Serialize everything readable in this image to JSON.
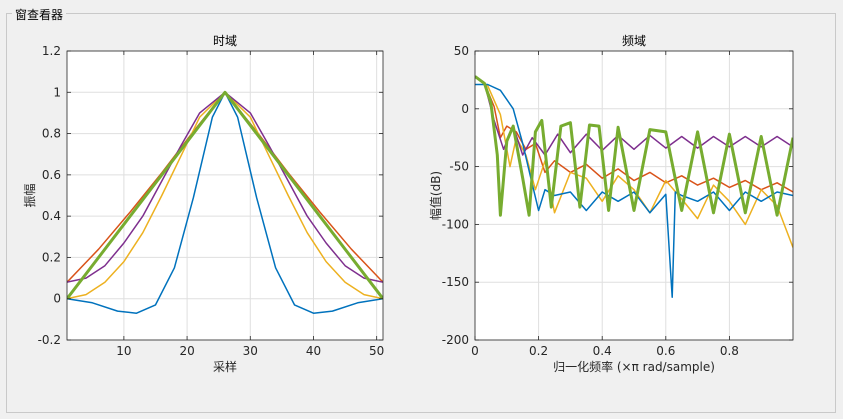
{
  "window": {
    "panel_title": "窗查看器"
  },
  "colors": {
    "axes_bg": "#ffffff",
    "grid": "#dfdfdf",
    "axis_line": "#262626",
    "series": [
      "#0072BD",
      "#D95319",
      "#EDB120",
      "#7E2F8E",
      "#77AC30"
    ]
  },
  "chart_data": [
    {
      "type": "line",
      "title": "时域",
      "xlabel": "采样",
      "ylabel": "振幅",
      "xlim": [
        1,
        51
      ],
      "ylim": [
        -0.2,
        1.2
      ],
      "xticks": [
        10,
        20,
        30,
        40,
        50
      ],
      "yticks": [
        -0.2,
        0,
        0.2,
        0.4,
        0.6,
        0.8,
        1,
        1.2
      ],
      "grid": true,
      "series": [
        {
          "x": [
            1,
            5,
            9,
            12,
            15,
            18,
            21,
            24,
            26,
            28,
            31,
            34,
            37,
            40,
            43,
            47,
            51
          ],
          "y": [
            0,
            -0.02,
            -0.06,
            -0.07,
            -0.03,
            0.15,
            0.49,
            0.88,
            1,
            0.88,
            0.49,
            0.15,
            -0.03,
            -0.07,
            -0.06,
            -0.02,
            0
          ]
        },
        {
          "x": [
            1,
            6,
            11,
            16,
            21,
            26,
            31,
            36,
            41,
            46,
            51
          ],
          "y": [
            0.08,
            0.24,
            0.42,
            0.61,
            0.81,
            1,
            0.81,
            0.61,
            0.42,
            0.24,
            0.08
          ]
        },
        {
          "x": [
            1,
            4,
            7,
            10,
            13,
            16,
            19,
            22,
            26,
            30,
            33,
            36,
            39,
            42,
            45,
            48,
            51
          ],
          "y": [
            0,
            0.02,
            0.08,
            0.18,
            0.32,
            0.5,
            0.69,
            0.88,
            1,
            0.88,
            0.69,
            0.5,
            0.32,
            0.18,
            0.08,
            0.02,
            0
          ]
        },
        {
          "x": [
            1,
            4,
            7,
            10,
            13,
            16,
            19,
            22,
            26,
            30,
            33,
            36,
            39,
            42,
            45,
            48,
            51
          ],
          "y": [
            0.08,
            0.1,
            0.16,
            0.27,
            0.4,
            0.57,
            0.74,
            0.9,
            1,
            0.9,
            0.74,
            0.57,
            0.4,
            0.27,
            0.16,
            0.1,
            0.08
          ]
        },
        {
          "x": [
            1,
            26,
            51
          ],
          "y": [
            0,
            1,
            0
          ]
        }
      ]
    },
    {
      "type": "line",
      "title": "频域",
      "xlabel": "归一化频率  (×π rad/sample)",
      "ylabel": "幅值(dB)",
      "xlim": [
        0,
        1
      ],
      "ylim": [
        -200,
        50
      ],
      "xticks": [
        0,
        0.2,
        0.4,
        0.6,
        0.8
      ],
      "yticks": [
        -200,
        -150,
        -100,
        -50,
        0,
        50
      ],
      "grid": true,
      "series": [
        {
          "x": [
            0,
            0.04,
            0.08,
            0.12,
            0.15,
            0.18,
            0.2,
            0.22,
            0.25,
            0.3,
            0.35,
            0.4,
            0.45,
            0.5,
            0.55,
            0.6,
            0.62,
            0.63,
            0.65,
            0.7,
            0.75,
            0.8,
            0.85,
            0.9,
            0.95,
            1
          ],
          "y": [
            21,
            21,
            16,
            0,
            -30,
            -65,
            -88,
            -70,
            -75,
            -72,
            -88,
            -72,
            -80,
            -72,
            -90,
            -74,
            -163,
            -72,
            -75,
            -80,
            -72,
            -88,
            -72,
            -80,
            -72,
            -75
          ]
        },
        {
          "x": [
            0,
            0.03,
            0.06,
            0.08,
            0.1,
            0.13,
            0.16,
            0.19,
            0.22,
            0.25,
            0.3,
            0.35,
            0.4,
            0.45,
            0.5,
            0.55,
            0.6,
            0.65,
            0.7,
            0.75,
            0.8,
            0.85,
            0.9,
            0.95,
            1
          ],
          "y": [
            28,
            22,
            2,
            -25,
            -15,
            -20,
            -35,
            -30,
            -55,
            -45,
            -55,
            -48,
            -60,
            -52,
            -62,
            -55,
            -64,
            -58,
            -66,
            -60,
            -68,
            -62,
            -70,
            -64,
            -72
          ]
        },
        {
          "x": [
            0,
            0.04,
            0.08,
            0.11,
            0.13,
            0.16,
            0.19,
            0.22,
            0.25,
            0.3,
            0.35,
            0.4,
            0.45,
            0.5,
            0.55,
            0.6,
            0.65,
            0.7,
            0.75,
            0.8,
            0.85,
            0.9,
            0.95,
            1
          ],
          "y": [
            28,
            20,
            -5,
            -50,
            -25,
            -40,
            -70,
            -45,
            -90,
            -55,
            -60,
            -80,
            -58,
            -70,
            -90,
            -62,
            -78,
            -95,
            -66,
            -80,
            -100,
            -70,
            -84,
            -120
          ]
        },
        {
          "x": [
            0,
            0.03,
            0.06,
            0.09,
            0.12,
            0.15,
            0.18,
            0.22,
            0.26,
            0.3,
            0.35,
            0.4,
            0.45,
            0.5,
            0.55,
            0.6,
            0.65,
            0.7,
            0.75,
            0.8,
            0.85,
            0.9,
            0.95,
            1
          ],
          "y": [
            28,
            22,
            -10,
            -35,
            -15,
            -40,
            -25,
            -40,
            -22,
            -38,
            -22,
            -36,
            -23,
            -35,
            -23,
            -34,
            -24,
            -34,
            -24,
            -33,
            -24,
            -33,
            -24,
            -33
          ]
        },
        {
          "x": [
            0,
            0.03,
            0.05,
            0.07,
            0.08,
            0.1,
            0.12,
            0.15,
            0.17,
            0.19,
            0.21,
            0.24,
            0.27,
            0.3,
            0.33,
            0.36,
            0.39,
            0.42,
            0.45,
            0.5,
            0.55,
            0.6,
            0.65,
            0.7,
            0.75,
            0.8,
            0.85,
            0.9,
            0.95,
            1
          ],
          "y": [
            28,
            22,
            5,
            -40,
            -92,
            -28,
            -15,
            -60,
            -92,
            -20,
            -10,
            -85,
            -15,
            -12,
            -85,
            -14,
            -15,
            -88,
            -16,
            -88,
            -18,
            -20,
            -88,
            -20,
            -90,
            -22,
            -90,
            -24,
            -92,
            -25
          ]
        }
      ]
    }
  ]
}
